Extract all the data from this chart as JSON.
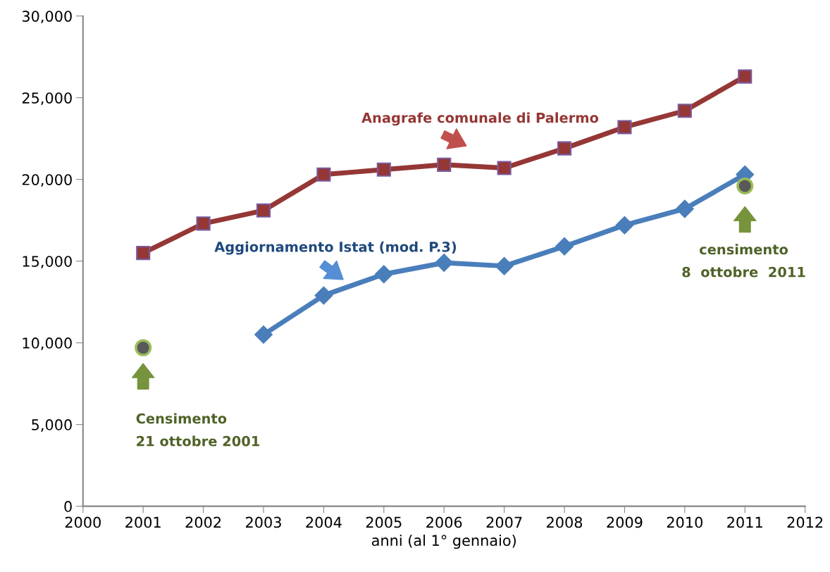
{
  "chart_data": {
    "type": "line",
    "xlabel": "anni (al 1° gennaio)",
    "xlim": [
      2000,
      2012
    ],
    "xticks": [
      2000,
      2001,
      2002,
      2003,
      2004,
      2005,
      2006,
      2007,
      2008,
      2009,
      2010,
      2011,
      2012
    ],
    "ylim": [
      0,
      30000
    ],
    "yticks": [
      {
        "value": 0,
        "label": "0"
      },
      {
        "value": 5000,
        "label": "5,000"
      },
      {
        "value": 10000,
        "label": "10,000"
      },
      {
        "value": 15000,
        "label": "15,000"
      },
      {
        "value": 20000,
        "label": "20,000"
      },
      {
        "value": 25000,
        "label": "25,000"
      },
      {
        "value": 30000,
        "label": "30,000"
      }
    ],
    "grid": false,
    "legend": false,
    "series": [
      {
        "name": "Anagrafe comunale di Palermo",
        "color": "#953735",
        "marker": "square",
        "x": [
          2001,
          2002,
          2003,
          2004,
          2005,
          2006,
          2007,
          2008,
          2009,
          2010,
          2011
        ],
        "values": [
          15500,
          17300,
          18100,
          20300,
          20600,
          20900,
          20700,
          21900,
          23200,
          24200,
          26300
        ]
      },
      {
        "name": "Aggiornamento Istat (mod. P.3)",
        "color": "#4a7ebb",
        "marker": "diamond",
        "x": [
          2003,
          2004,
          2005,
          2006,
          2007,
          2008,
          2009,
          2010,
          2011
        ],
        "values": [
          10500,
          12900,
          14200,
          14900,
          14700,
          15900,
          17200,
          18200,
          20300
        ]
      },
      {
        "type": "scatter",
        "color": "#595959",
        "marker": "circle",
        "x": [
          2001,
          2011
        ],
        "values": [
          9700,
          19600
        ]
      }
    ],
    "annotations": [
      "Censimento\n21 ottobre 2001",
      "censimento\n8  ottobre  2011"
    ]
  }
}
